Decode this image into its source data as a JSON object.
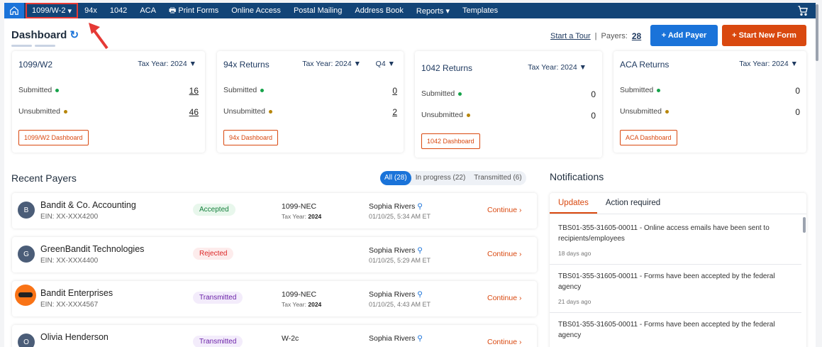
{
  "nav": {
    "items": [
      "1099/W-2",
      "94x",
      "1042",
      "ACA",
      "Print Forms",
      "Online Access",
      "Postal Mailing",
      "Address Book",
      "Reports",
      "Templates"
    ]
  },
  "header": {
    "title": "Dashboard",
    "tour": "Start a Tour",
    "payers_label": "Payers:",
    "payers_count": "28",
    "add_payer": "+ Add Payer",
    "start_form": "+ Start New Form"
  },
  "colors": {
    "nav": "#124477",
    "primary": "#1a73d9",
    "accent": "#d9480f"
  },
  "cards": [
    {
      "title": "1099/W2",
      "tax_year": "Tax Year: 2024",
      "submitted_label": "Submitted",
      "submitted": "16",
      "unsubmitted_label": "Unsubmitted",
      "unsubmitted": "46",
      "button": "1099/W2 Dashboard"
    },
    {
      "title": "94x Returns",
      "tax_year": "Tax Year: 2024",
      "quarter": "Q4",
      "submitted_label": "Submitted",
      "submitted": "0",
      "unsubmitted_label": "Unsubmitted",
      "unsubmitted": "2",
      "button": "94x Dashboard"
    },
    {
      "title": "1042 Returns",
      "tax_year": "Tax Year: 2024",
      "submitted_label": "Submitted",
      "submitted": "0",
      "unsubmitted_label": "Unsubmitted",
      "unsubmitted": "0",
      "button": "1042 Dashboard"
    },
    {
      "title": "ACA Returns",
      "tax_year": "Tax Year: 2024",
      "submitted_label": "Submitted",
      "submitted": "0",
      "unsubmitted_label": "Unsubmitted",
      "unsubmitted": "0",
      "button": "ACA Dashboard"
    }
  ],
  "recent": {
    "title": "Recent Payers",
    "filters": [
      "All (28)",
      "In progress (22)",
      "Transmitted (6)"
    ],
    "tax_year_label": "Tax Year:",
    "continue": "Continue",
    "rows": [
      {
        "initial": "B",
        "name": "Bandit & Co. Accounting",
        "ein": "EIN: XX-XXX4200",
        "status": "Accepted",
        "form": "1099-NEC",
        "year": "2024",
        "user": "Sophia Rivers",
        "date": "01/10/25, 5:34 AM ET"
      },
      {
        "initial": "G",
        "name": "GreenBandit Technologies",
        "ein": "EIN: XX-XXX4400",
        "status": "Rejected",
        "form": "",
        "year": "",
        "user": "Sophia Rivers",
        "date": "01/10/25, 5:29 AM ET"
      },
      {
        "initial": "",
        "name": "Bandit Enterprises",
        "ein": "EIN: XX-XXX4567",
        "status": "Transmitted",
        "form": "1099-NEC",
        "year": "2024",
        "user": "Sophia Rivers",
        "date": "01/10/25, 4:43 AM ET"
      },
      {
        "initial": "O",
        "name": "Olivia Henderson",
        "ein": "",
        "status": "Transmitted",
        "form": "W-2c",
        "year": "",
        "user": "Sophia Rivers",
        "date": ""
      }
    ]
  },
  "notifications": {
    "title": "Notifications",
    "tabs": [
      "Updates",
      "Action required"
    ],
    "items": [
      {
        "text": "TBS01-355-31605-00011 - Online access emails have been sent to recipients/employees",
        "ago": "18 days ago"
      },
      {
        "text": "TBS01-355-31605-00011 - Forms have been accepted by the federal agency",
        "ago": "21 days ago"
      },
      {
        "text": "TBS01-355-31605-00011 - Forms have been accepted by the federal agency",
        "ago": ""
      }
    ]
  }
}
